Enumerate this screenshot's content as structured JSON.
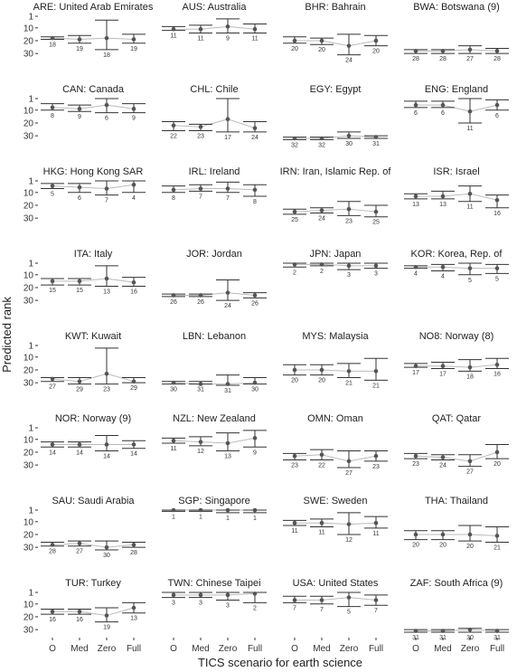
{
  "chart_data": {
    "type": "interval",
    "xlabel": "TICS scenario for earth science",
    "ylabel": "Predicted rank",
    "categories": [
      "O",
      "Med",
      "Zero",
      "Full"
    ],
    "y_ticks": [
      1,
      10,
      20,
      30
    ],
    "ylim": [
      1,
      32
    ],
    "y_reversed": true,
    "colors": {
      "point": "#555555",
      "interval": "#333333",
      "connector": "#bbbbbb"
    },
    "panels": [
      {
        "title": "ARE: United Arab Emirates",
        "values": [
          18,
          19,
          18,
          19
        ],
        "intervals": [
          [
            17,
            19
          ],
          [
            16,
            22
          ],
          [
            4,
            27
          ],
          [
            15,
            22
          ]
        ]
      },
      {
        "title": "AUS: Australia",
        "values": [
          11,
          11,
          9,
          11
        ],
        "intervals": [
          [
            9,
            12
          ],
          [
            8,
            14
          ],
          [
            3,
            14
          ],
          [
            7,
            14
          ]
        ]
      },
      {
        "title": "BHR: Bahrain",
        "values": [
          20,
          20,
          24,
          20
        ],
        "intervals": [
          [
            17,
            22
          ],
          [
            18,
            23
          ],
          [
            15,
            31
          ],
          [
            16,
            24
          ]
        ]
      },
      {
        "title": "BWA: Botswana (9)",
        "values": [
          28,
          28,
          27,
          28
        ],
        "intervals": [
          [
            27,
            30
          ],
          [
            27,
            30
          ],
          [
            24,
            30
          ],
          [
            26,
            30
          ]
        ]
      },
      {
        "title": "CAN: Canada",
        "values": [
          8,
          9,
          6,
          9
        ],
        "intervals": [
          [
            5,
            10
          ],
          [
            6,
            11
          ],
          [
            1,
            12
          ],
          [
            5,
            12
          ]
        ]
      },
      {
        "title": "CHL: Chile",
        "values": [
          22,
          23,
          17,
          24
        ],
        "intervals": [
          [
            19,
            26
          ],
          [
            21,
            26
          ],
          [
            1,
            27
          ],
          [
            19,
            27
          ]
        ]
      },
      {
        "title": "EGY: Egypt",
        "values": [
          32,
          32,
          30,
          31
        ],
        "intervals": [
          [
            31,
            33
          ],
          [
            31,
            33
          ],
          [
            27,
            32
          ],
          [
            30,
            32
          ]
        ]
      },
      {
        "title": "ENG: England",
        "values": [
          6,
          6,
          11,
          6
        ],
        "intervals": [
          [
            3,
            8
          ],
          [
            3,
            8
          ],
          [
            1,
            20
          ],
          [
            2,
            10
          ]
        ]
      },
      {
        "title": "HKG: Hong Kong SAR",
        "values": [
          5,
          6,
          7,
          4
        ],
        "intervals": [
          [
            3,
            7
          ],
          [
            3,
            10
          ],
          [
            1,
            12
          ],
          [
            1,
            10
          ]
        ]
      },
      {
        "title": "IRL: Ireland",
        "values": [
          8,
          7,
          7,
          8
        ],
        "intervals": [
          [
            5,
            10
          ],
          [
            4,
            9
          ],
          [
            2,
            10
          ],
          [
            4,
            13
          ]
        ]
      },
      {
        "title": "IRN: Iran, Islamic Rep. of",
        "values": [
          25,
          24,
          23,
          25
        ],
        "intervals": [
          [
            23,
            27
          ],
          [
            22,
            26
          ],
          [
            17,
            28
          ],
          [
            20,
            29
          ]
        ]
      },
      {
        "title": "ISR: Israel",
        "values": [
          13,
          13,
          11,
          16
        ],
        "intervals": [
          [
            11,
            15
          ],
          [
            9,
            15
          ],
          [
            5,
            17
          ],
          [
            12,
            22
          ]
        ]
      },
      {
        "title": "ITA: Italy",
        "values": [
          15,
          15,
          13,
          16
        ],
        "intervals": [
          [
            13,
            18
          ],
          [
            13,
            18
          ],
          [
            3,
            19
          ],
          [
            12,
            19
          ]
        ]
      },
      {
        "title": "JOR: Jordan",
        "values": [
          26,
          26,
          24,
          26
        ],
        "intervals": [
          [
            25,
            27
          ],
          [
            25,
            27
          ],
          [
            14,
            30
          ],
          [
            24,
            28
          ]
        ]
      },
      {
        "title": "JPN: Japan",
        "values": [
          2,
          2,
          3,
          3
        ],
        "intervals": [
          [
            1,
            4
          ],
          [
            1,
            3
          ],
          [
            1,
            6
          ],
          [
            1,
            5
          ]
        ]
      },
      {
        "title": "KOR: Korea, Rep. of",
        "values": [
          4,
          4,
          5,
          5
        ],
        "intervals": [
          [
            3,
            5
          ],
          [
            2,
            7
          ],
          [
            1,
            10
          ],
          [
            2,
            9
          ]
        ]
      },
      {
        "title": "KWT: Kuwait",
        "values": [
          27,
          29,
          23,
          29
        ],
        "intervals": [
          [
            26,
            29
          ],
          [
            26,
            31
          ],
          [
            3,
            31
          ],
          [
            26,
            30
          ]
        ]
      },
      {
        "title": "LBN: Lebanon",
        "values": [
          30,
          31,
          31,
          30
        ],
        "intervals": [
          [
            29,
            31
          ],
          [
            29,
            31
          ],
          [
            24,
            32
          ],
          [
            26,
            31
          ]
        ]
      },
      {
        "title": "MYS: Malaysia",
        "values": [
          20,
          20,
          21,
          21
        ],
        "intervals": [
          [
            16,
            24
          ],
          [
            16,
            24
          ],
          [
            15,
            26
          ],
          [
            11,
            28
          ]
        ]
      },
      {
        "title": "NO8: Norway (8)",
        "values": [
          17,
          17,
          18,
          16
        ],
        "intervals": [
          [
            15,
            18
          ],
          [
            14,
            19
          ],
          [
            12,
            21
          ],
          [
            11,
            19
          ]
        ]
      },
      {
        "title": "NOR: Norway (9)",
        "values": [
          14,
          14,
          14,
          14
        ],
        "intervals": [
          [
            12,
            16
          ],
          [
            12,
            16
          ],
          [
            7,
            19
          ],
          [
            11,
            17
          ]
        ]
      },
      {
        "title": "NZL: New Zealand",
        "values": [
          11,
          12,
          13,
          9
        ],
        "intervals": [
          [
            9,
            13
          ],
          [
            8,
            15
          ],
          [
            5,
            19
          ],
          [
            3,
            16
          ]
        ]
      },
      {
        "title": "OMN: Oman",
        "values": [
          23,
          22,
          27,
          23
        ],
        "intervals": [
          [
            21,
            26
          ],
          [
            18,
            26
          ],
          [
            19,
            32
          ],
          [
            19,
            27
          ]
        ]
      },
      {
        "title": "QAT: Qatar",
        "values": [
          23,
          24,
          27,
          20
        ],
        "intervals": [
          [
            21,
            25
          ],
          [
            22,
            26
          ],
          [
            22,
            31
          ],
          [
            14,
            25
          ]
        ]
      },
      {
        "title": "SAU: Saudi Arabia",
        "values": [
          28,
          27,
          30,
          28
        ],
        "intervals": [
          [
            26,
            29
          ],
          [
            25,
            29
          ],
          [
            25,
            32
          ],
          [
            26,
            30
          ]
        ]
      },
      {
        "title": "SGP: Singapore",
        "values": [
          1,
          1,
          1,
          1
        ],
        "intervals": [
          [
            1,
            2
          ],
          [
            1,
            2
          ],
          [
            1,
            3
          ],
          [
            1,
            3
          ]
        ]
      },
      {
        "title": "SWE: Sweden",
        "values": [
          11,
          11,
          12,
          11
        ],
        "intervals": [
          [
            9,
            13
          ],
          [
            8,
            14
          ],
          [
            3,
            20
          ],
          [
            6,
            15
          ]
        ]
      },
      {
        "title": "THA: Thailand",
        "values": [
          20,
          20,
          20,
          21
        ],
        "intervals": [
          [
            17,
            24
          ],
          [
            17,
            24
          ],
          [
            13,
            25
          ],
          [
            14,
            26
          ]
        ]
      },
      {
        "title": "TUR: Turkey",
        "values": [
          16,
          16,
          19,
          13
        ],
        "intervals": [
          [
            14,
            18
          ],
          [
            14,
            18
          ],
          [
            13,
            24
          ],
          [
            9,
            17
          ]
        ]
      },
      {
        "title": "TWN: Chinese Taipei",
        "values": [
          3,
          3,
          3,
          2
        ],
        "intervals": [
          [
            1,
            5
          ],
          [
            1,
            5
          ],
          [
            1,
            7
          ],
          [
            1,
            9
          ]
        ]
      },
      {
        "title": "USA: United States",
        "values": [
          7,
          7,
          5,
          7
        ],
        "intervals": [
          [
            4,
            9
          ],
          [
            4,
            10
          ],
          [
            1,
            12
          ],
          [
            3,
            11
          ]
        ]
      },
      {
        "title": "ZAF: South Africa (9)",
        "values": [
          31,
          31,
          30,
          31
        ],
        "intervals": [
          [
            30,
            32
          ],
          [
            30,
            32
          ],
          [
            29,
            32
          ],
          [
            30,
            32
          ]
        ]
      }
    ]
  }
}
